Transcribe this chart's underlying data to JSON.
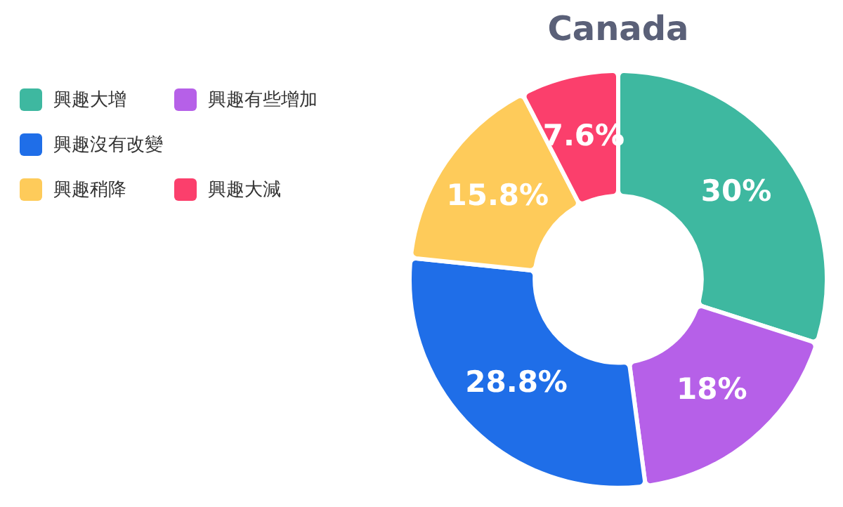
{
  "chart_data": {
    "type": "donut",
    "title": "Canada",
    "categories": [
      "興趣大增",
      "興趣有些增加",
      "興趣沒有改變",
      "興趣稍降",
      "興趣大減"
    ],
    "values": [
      30,
      18,
      28.8,
      15.8,
      7.6
    ],
    "colors": [
      "#3eb8a0",
      "#b660e8",
      "#1f6ee8",
      "#fecb5a",
      "#fb3f6c"
    ],
    "value_labels": [
      "30%",
      "18%",
      "28.8%",
      "15.8%",
      "7.6%"
    ],
    "legend": "left"
  }
}
